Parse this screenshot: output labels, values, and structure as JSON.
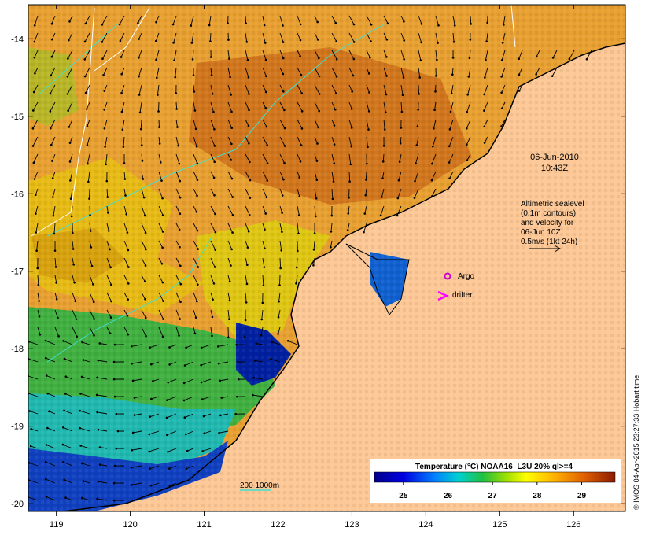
{
  "map": {
    "timestamp_date": "06-Jun-2010",
    "timestamp_time": "10:43Z",
    "legend_lines": [
      "Altimetric sealevel",
      "(0.1m contours)",
      "and velocity for",
      "06-Jun 10Z",
      "0.5m/s (1kt 24h)"
    ],
    "argo_label": "Argo",
    "drifter_label": "drifter",
    "depth_label": "200  1000m",
    "colorbar_title": "Temperature (°C) NOAA16_L3U 20% ql>=4",
    "colorbar_ticks": [
      "25",
      "26",
      "27",
      "28",
      "29"
    ],
    "credit": "© IMOS 04-Apr-2015 23:27:33 Hobart time",
    "x_ticks": [
      "119",
      "120",
      "121",
      "122",
      "123",
      "124",
      "125",
      "126"
    ],
    "y_ticks": [
      "-14",
      "-15",
      "-16",
      "-17",
      "-18",
      "-19",
      "-20"
    ],
    "colors": {
      "land": "#fdc896",
      "argo": "#cc00cc",
      "drifter": "#ff00ff",
      "isobath": "#40e0d0",
      "coast": "#000000",
      "contour": "#ffffff"
    }
  }
}
